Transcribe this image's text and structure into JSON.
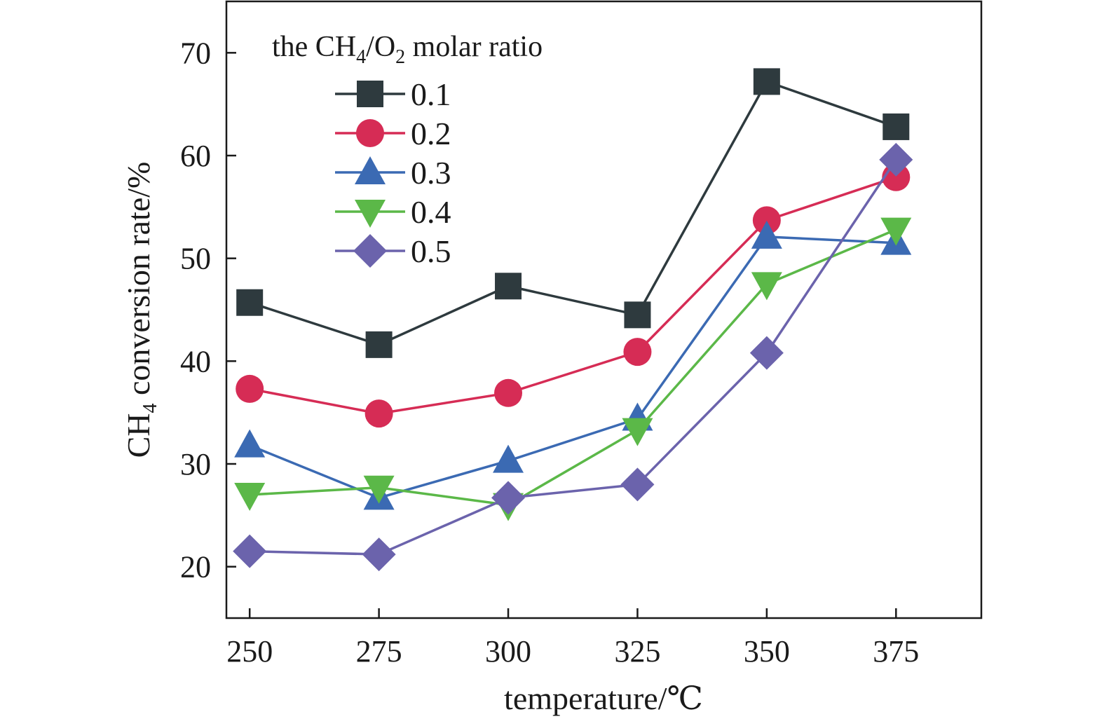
{
  "chart_data": {
    "type": "line",
    "legend_title": {
      "prefix": "the CH",
      "sub1": "4",
      "mid": "/O",
      "sub2": "2",
      "suffix": " molar ratio"
    },
    "xlabel": "temperature/℃",
    "ylabel": {
      "prefix": "CH",
      "sub": "4",
      "suffix": " conversion rate/%"
    },
    "x": [
      250,
      275,
      300,
      325,
      350,
      375
    ],
    "x_tick_labels": [
      "250",
      "275",
      "300",
      "325",
      "350",
      "375"
    ],
    "y_ticks": [
      20,
      30,
      40,
      50,
      60,
      70
    ],
    "y_tick_labels": [
      "20",
      "30",
      "40",
      "50",
      "60",
      "70"
    ],
    "xlim": [
      245.5,
      391.5
    ],
    "ylim": [
      15,
      75
    ],
    "grid": false,
    "legend_position": "top-left",
    "series": [
      {
        "name": "0.1",
        "marker": "square",
        "color": "#2e3a3e",
        "values": [
          45.7,
          41.6,
          47.3,
          44.5,
          67.2,
          62.8
        ]
      },
      {
        "name": "0.2",
        "marker": "circle",
        "color": "#d62c55",
        "values": [
          37.3,
          34.9,
          36.9,
          40.9,
          53.7,
          57.9
        ]
      },
      {
        "name": "0.3",
        "marker": "triangle-up",
        "color": "#3b6ab3",
        "values": [
          31.8,
          26.7,
          30.3,
          34.4,
          52.1,
          51.5
        ]
      },
      {
        "name": "0.4",
        "marker": "triangle-down",
        "color": "#5bb848",
        "values": [
          27.0,
          27.7,
          26.0,
          33.3,
          47.5,
          52.8
        ]
      },
      {
        "name": "0.5",
        "marker": "diamond",
        "color": "#6b63ac",
        "values": [
          21.5,
          21.2,
          26.7,
          28.0,
          40.8,
          59.6
        ]
      }
    ]
  }
}
